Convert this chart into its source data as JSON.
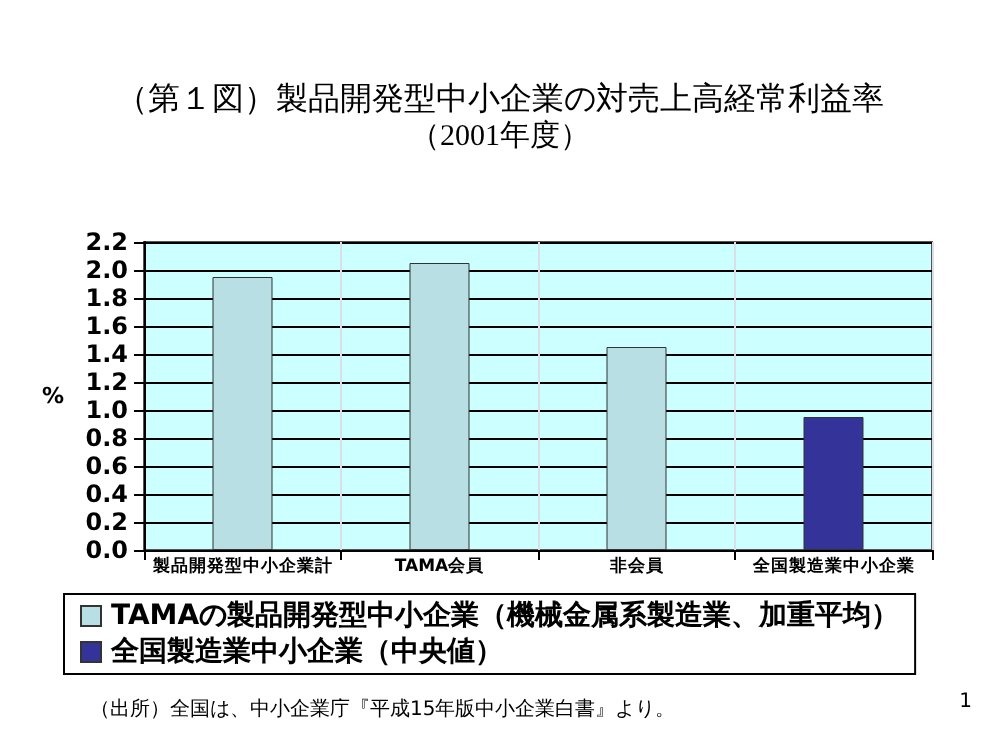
{
  "chart_data": {
    "type": "bar",
    "title": "（第１図）製品開発型中小企業の対売上高経常利益率",
    "subtitle": "（2001年度）",
    "ylabel": "%",
    "categories": [
      "製品開発型中小企業計",
      "TAMA会員",
      "非会員",
      "全国製造業中小企業"
    ],
    "series": [
      {
        "name": "TAMAの製品開発型中小企業（機械金属系製造業、加重平均）",
        "color": "#b8e0e4",
        "values": [
          1.95,
          2.05,
          1.45,
          null
        ]
      },
      {
        "name": "全国製造業中小企業（中央値）",
        "color": "#333399",
        "values": [
          null,
          null,
          null,
          0.95
        ]
      }
    ],
    "ylim": [
      0,
      2.2
    ],
    "yticks": [
      {
        "value": 0,
        "label": "0.0"
      },
      {
        "value": 0.2,
        "label": "0.2"
      },
      {
        "value": 0.4,
        "label": "0.4"
      },
      {
        "value": 0.6,
        "label": "0.6"
      },
      {
        "value": 0.8,
        "label": "0.8"
      },
      {
        "value": 1,
        "label": "1.0"
      },
      {
        "value": 1.2,
        "label": "1.2"
      },
      {
        "value": 1.4,
        "label": "1.4"
      },
      {
        "value": 1.6,
        "label": "1.6"
      },
      {
        "value": 1.8,
        "label": "1.8"
      },
      {
        "value": 2,
        "label": "2.0"
      },
      {
        "value": 2.2,
        "label": "2.2"
      }
    ],
    "grid": true,
    "legend": "bottom",
    "annotations": [
      "（出所）全国は、中小企業庁『平成15年版中小企業白書』より。",
      "1"
    ]
  }
}
